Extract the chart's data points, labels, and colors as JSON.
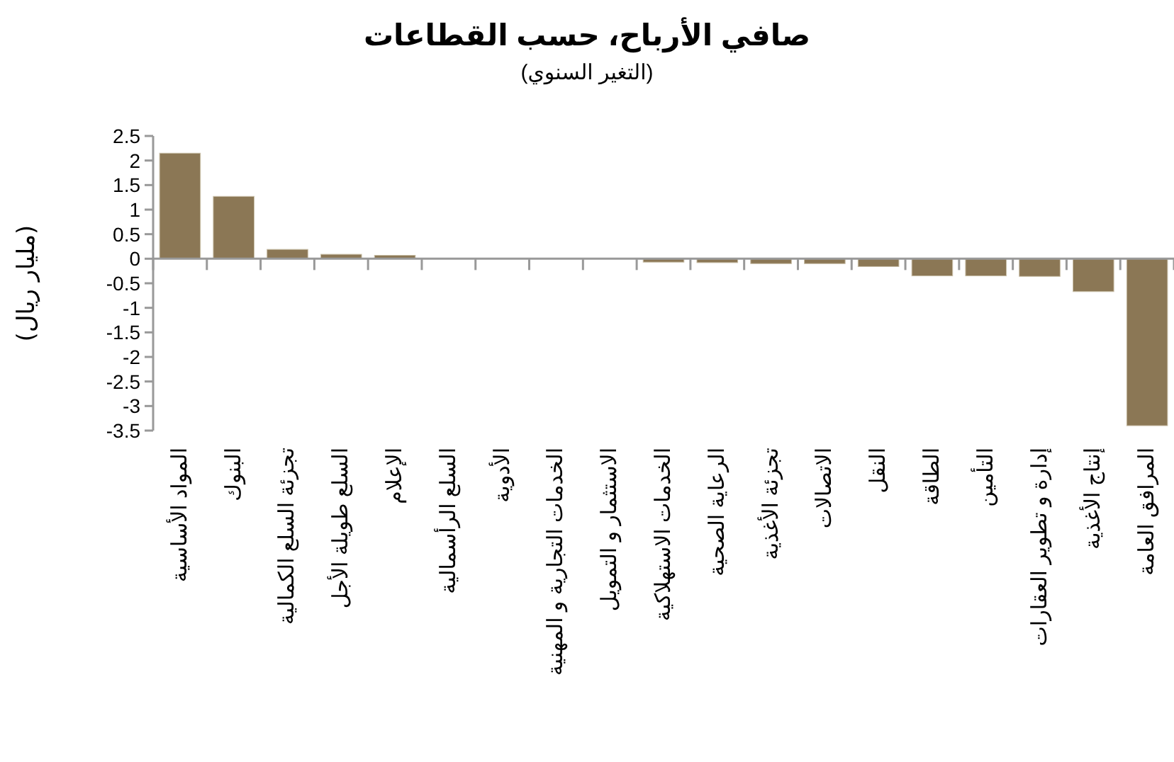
{
  "chart_data": {
    "type": "bar",
    "title": "صافي الأرباح، حسب القطاعات",
    "subtitle": "(التغير السنوي)",
    "ylabel": "(مليار ريال)",
    "categories": [
      "المواد الأساسية",
      "البنوك",
      "تجزئة السلع الكمالية",
      "السلع طويلة الأجل",
      "الإعلام",
      "السلع الرأسمالية",
      "الأدوية",
      "الخدمات التجارية و المهنية",
      "الاستثمار و التمويل",
      "الخدمات الاستهلاكية",
      "الرعاية الصحية",
      "تجزئة الأغذية",
      "الاتصالات",
      "النقل",
      "الطاقة",
      "التأمين",
      "إدارة و تطوير العقارات",
      "إنتاج الأغذية",
      "المرافق العامة"
    ],
    "values": [
      2.15,
      1.27,
      0.19,
      0.09,
      0.07,
      0.01,
      0.01,
      0,
      0,
      -0.07,
      -0.08,
      -0.1,
      -0.1,
      -0.16,
      -0.35,
      -0.35,
      -0.36,
      -0.67,
      -3.4
    ],
    "color": "#8b7755",
    "ylim": [
      -3.5,
      2.5
    ],
    "yticks": [
      2.5,
      2,
      1.5,
      1,
      0.5,
      0,
      -0.5,
      -1,
      -1.5,
      -2,
      -2.5,
      -3,
      -3.5
    ]
  }
}
